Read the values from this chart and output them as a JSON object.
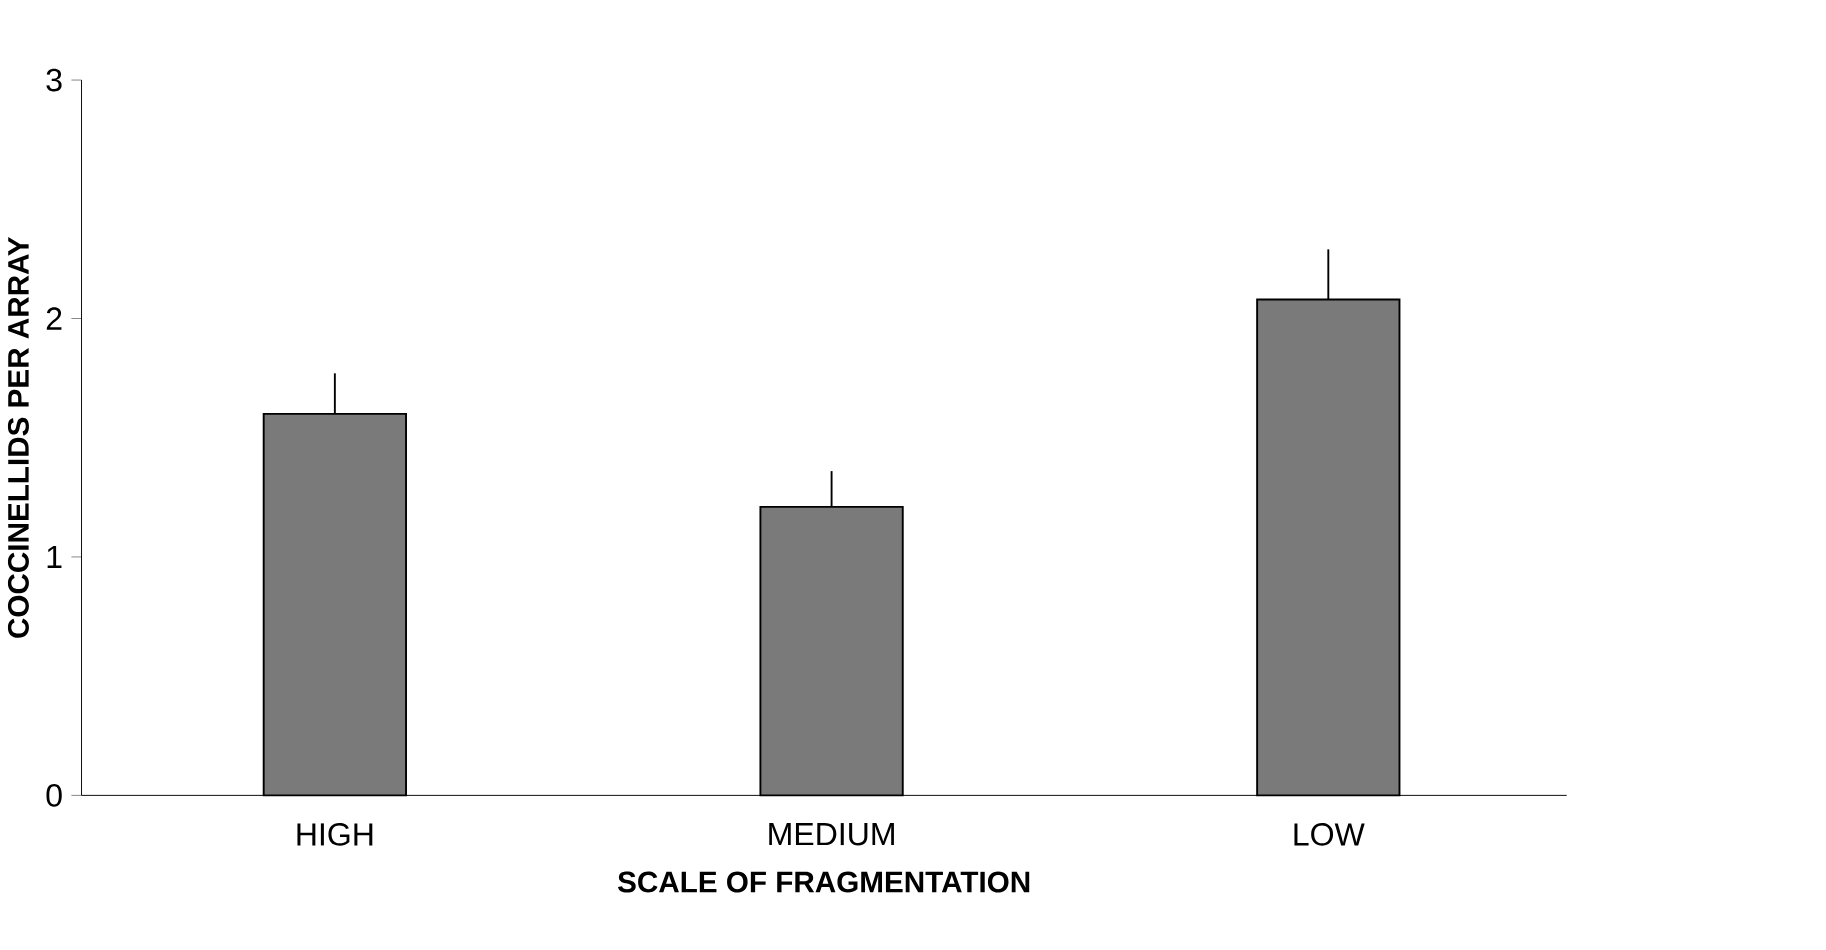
{
  "chart_data": {
    "type": "bar",
    "xlabel": "SCALE OF FRAGMENTATION",
    "ylabel": "COCCINELLIDS PER ARRAY",
    "categories": [
      "HIGH",
      "MEDIUM",
      "LOW"
    ],
    "values": [
      1.6,
      1.21,
      2.08
    ],
    "errors": [
      [
        1.6,
        1.77
      ],
      [
        1.21,
        1.36
      ],
      [
        2.08,
        2.29
      ]
    ],
    "color": "#7a7a7a",
    "ylim": [
      0,
      3
    ],
    "yticks": [
      0,
      1,
      2,
      3
    ],
    "grid": false
  }
}
